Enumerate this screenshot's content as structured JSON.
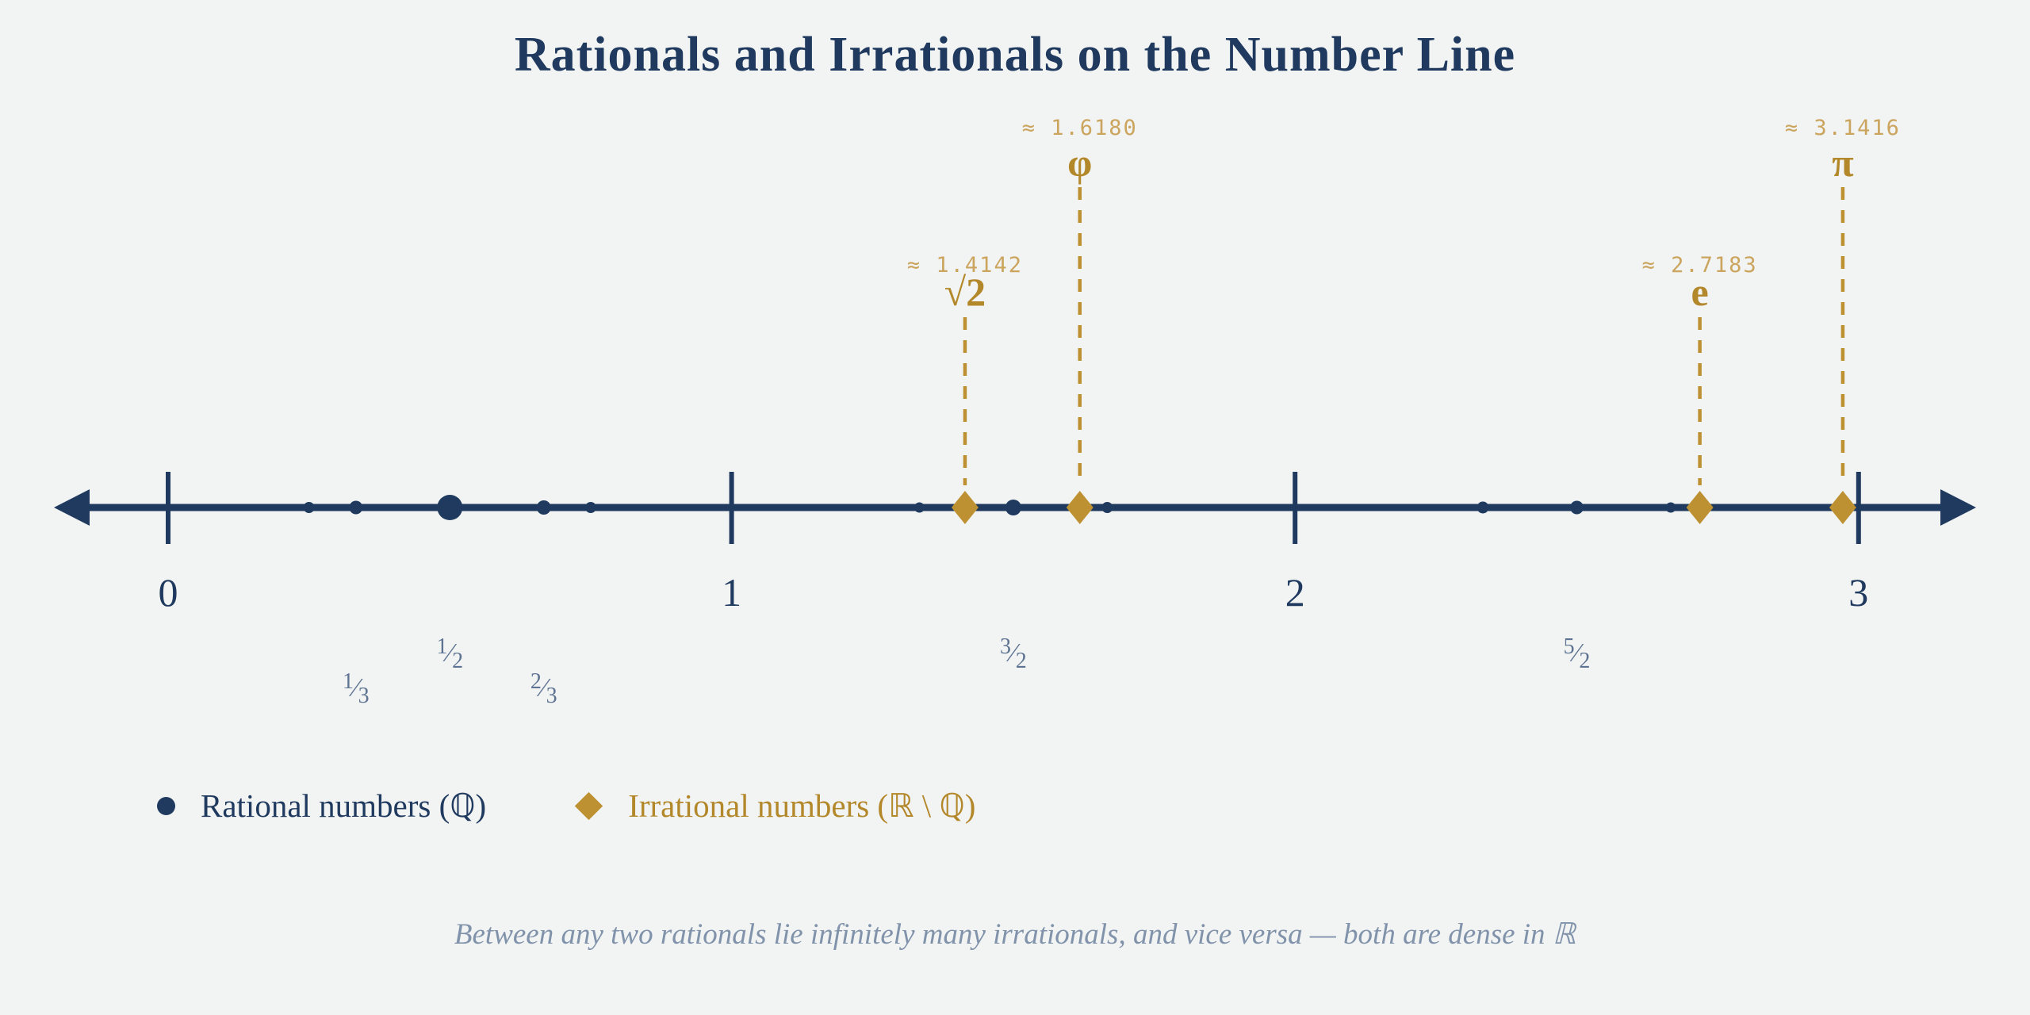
{
  "title": "Rationals and Irrationals on the Number Line",
  "legend": {
    "rational": "Rational numbers (ℚ)",
    "irrational": "Irrational numbers (ℝ \\ ℚ)"
  },
  "caption": "Between any two rationals lie infinitely many irrationals, and vice versa — both are dense in ℝ",
  "colors": {
    "background": "#f2f3f3",
    "navy": "#1f3a5e",
    "gold": "#bd9132",
    "gold_symbol": "#b3882a",
    "gold_approx_text": "#cba55e",
    "fraction_blue": "#5d7391",
    "caption_gray": "#8093ab"
  },
  "chart_data": {
    "type": "number_line",
    "axis": {
      "range": [
        0,
        3
      ],
      "ticks": [
        {
          "value": 0,
          "label": "0"
        },
        {
          "value": 1,
          "label": "1"
        },
        {
          "value": 2,
          "label": "2"
        },
        {
          "value": 3,
          "label": "3"
        }
      ],
      "arrows_both_ends": true
    },
    "rational_points": [
      {
        "value": 0.25,
        "label": null,
        "label_row": 0,
        "size": 7
      },
      {
        "value": 0.3333,
        "label": "1/3",
        "label_row": 2,
        "size": 8.5
      },
      {
        "value": 0.5,
        "label": "1/2",
        "label_row": 1,
        "size": 16
      },
      {
        "value": 0.6667,
        "label": "2/3",
        "label_row": 2,
        "size": 9
      },
      {
        "value": 0.75,
        "label": null,
        "label_row": 0,
        "size": 7
      },
      {
        "value": 1.3333,
        "label": null,
        "label_row": 0,
        "size": 6.5
      },
      {
        "value": 1.5,
        "label": "3/2",
        "label_row": 1,
        "size": 10
      },
      {
        "value": 1.6667,
        "label": null,
        "label_row": 0,
        "size": 7
      },
      {
        "value": 2.3333,
        "label": null,
        "label_row": 0,
        "size": 7.5
      },
      {
        "value": 2.5,
        "label": "5/2",
        "label_row": 1,
        "size": 8.5
      },
      {
        "value": 2.6667,
        "label": null,
        "label_row": 0,
        "size": 6.5
      }
    ],
    "irrational_points": [
      {
        "symbol": "√2",
        "approx_label": "≈ 1.4142",
        "value": 1.4142,
        "plotted_at": 1.4142,
        "label_tier": "low"
      },
      {
        "symbol": "φ",
        "approx_label": "≈ 1.6180",
        "value": 1.618,
        "plotted_at": 1.618,
        "label_tier": "high"
      },
      {
        "symbol": "e",
        "approx_label": "≈ 2.7183",
        "value": 2.7183,
        "plotted_at": 2.7183,
        "label_tier": "low"
      },
      {
        "symbol": "π",
        "approx_label": "≈ 3.1416",
        "value": 3.1416,
        "plotted_at": 2.972,
        "label_tier": "high"
      }
    ]
  }
}
